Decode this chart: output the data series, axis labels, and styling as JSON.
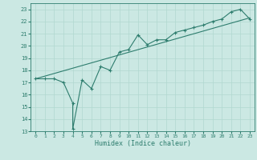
{
  "xlabel": "Humidex (Indice chaleur)",
  "xlim": [
    -0.5,
    23.5
  ],
  "ylim": [
    13,
    23.5
  ],
  "yticks": [
    13,
    14,
    15,
    16,
    17,
    18,
    19,
    20,
    21,
    22,
    23
  ],
  "xticks": [
    0,
    1,
    2,
    3,
    4,
    5,
    6,
    7,
    8,
    9,
    10,
    11,
    12,
    13,
    14,
    15,
    16,
    17,
    18,
    19,
    20,
    21,
    22,
    23
  ],
  "bg_color": "#cbe8e3",
  "grid_color": "#b0d8d0",
  "line_color": "#2e7d6e",
  "line1_x": [
    0,
    1,
    2,
    3,
    4,
    4,
    5,
    6,
    7,
    8,
    9,
    10,
    11,
    12,
    13,
    14,
    15,
    16,
    17,
    18,
    19,
    20,
    21,
    22,
    23
  ],
  "line1_y": [
    17.3,
    17.3,
    17.3,
    17.0,
    15.3,
    13.2,
    17.2,
    16.5,
    18.3,
    18.0,
    19.5,
    19.7,
    20.9,
    20.1,
    20.5,
    20.5,
    21.1,
    21.3,
    21.5,
    21.7,
    22.0,
    22.2,
    22.8,
    23.0,
    22.2
  ],
  "line2_x": [
    0,
    23
  ],
  "line2_y": [
    17.3,
    22.3
  ],
  "xlabel_fontsize": 6.0,
  "tick_fontsize": 5.0,
  "linewidth": 0.8,
  "markersize": 3.0
}
